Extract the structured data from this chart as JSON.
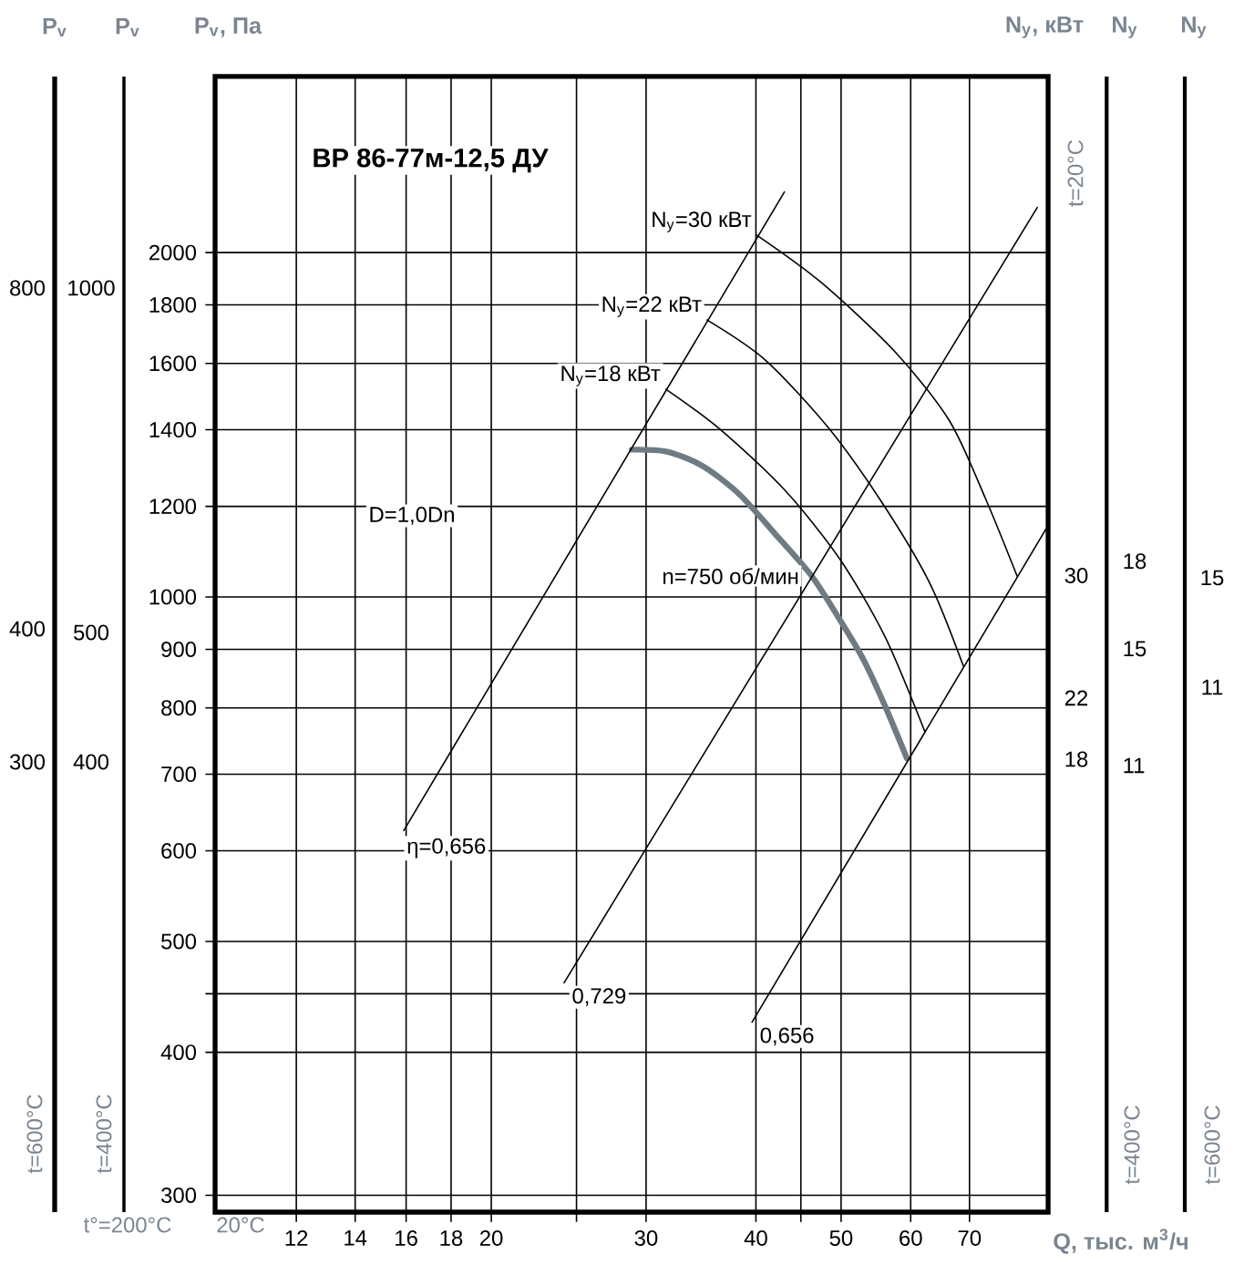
{
  "chart_data": [
    {
      "type": "other",
      "ylabel": "P$_{v}$",
      "annotations": [
        "800",
        "400",
        "300",
        "t=600°C"
      ]
    },
    {
      "type": "other",
      "ylabel": "P$_{v}$",
      "annotations": [
        "1000",
        "500",
        "400",
        "t=400°C"
      ]
    },
    {
      "type": "line",
      "title": "ВР 86-77м-12,5 ДУ",
      "xlabel": "Q, тыс. м$^{3}$/ч",
      "ylabel": "P$_{v}$, Па",
      "y2label": "N$_{y}$, кВт",
      "y3label": "N$_{y}$",
      "log": "xy",
      "grid": true,
      "xlim": [
        9.7,
        86
      ],
      "xticks": [
        12,
        14,
        16,
        18,
        20,
        {
          "value": 25,
          "label": null
        },
        30,
        40,
        {
          "value": 45,
          "label": null
        },
        50,
        60,
        70
      ],
      "ylim": [
        290,
        2850
      ],
      "yticks": [
        300,
        400,
        {
          "value": 450,
          "label": null
        },
        500,
        600,
        700,
        800,
        900,
        1000,
        1200,
        1400,
        1600,
        1800,
        2000
      ],
      "y2lim": [
        -11.6,
        62.6
      ],
      "y2ticks": [
        18,
        22,
        30
      ],
      "y3lim": [
        -4.3,
        34.6
      ],
      "y3ticks": [
        11,
        15,
        18
      ],
      "series": [
        {
          "name": "n=750 об/мин",
          "color": "#6e7b82",
          "x": [
            28.9,
            31.6,
            34.7,
            38.2,
            42.0,
            46.3,
            49.8,
            53.0,
            56.1,
            59.4
          ],
          "values": [
            1345,
            1340,
            1303,
            1232,
            1137,
            1043,
            956,
            882,
            803,
            723
          ]
        },
        {
          "name": "N$_{y}$=30 кВт",
          "color": "#000000",
          "x": [
            40.1,
            47.4,
            57.5,
            66.4,
            73.0,
            79.3
          ],
          "values": [
            2071,
            1885,
            1640,
            1426,
            1219,
            1043
          ]
        },
        {
          "name": "N$_{y}$=22 кВт",
          "color": "#000000",
          "x": [
            35.2,
            41.0,
            48.5,
            56.1,
            63.2,
            68.9
          ],
          "values": [
            1746,
            1611,
            1402,
            1198,
            1025,
            870
          ]
        },
        {
          "name": "N$_{y}$=18 кВт",
          "color": "#000000",
          "x": [
            31.6,
            36.4,
            43.1,
            49.8,
            56.1,
            62.3
          ],
          "values": [
            1519,
            1402,
            1241,
            1080,
            923,
            762
          ]
        },
        {
          "name": "η=0,656",
          "color": "#000000",
          "x": [
            15.9,
            43.1
          ],
          "values": [
            625,
            2259
          ]
        },
        {
          "name": "0,729",
          "color": "#000000",
          "x": [
            24.2,
            83.6
          ],
          "values": [
            460,
            2190
          ]
        },
        {
          "name": "0,656",
          "color": "#000000",
          "x": [
            39.6,
            85.5
          ],
          "values": [
            425,
            1146
          ]
        }
      ],
      "annotations": [
        "D=1,0Dn",
        "t°=200°C",
        "20°C",
        "t=20°C",
        "t=400°C"
      ]
    },
    {
      "type": "other",
      "ylabel": "N$_{y}$",
      "annotations": [
        "15",
        "11",
        "t=600°C"
      ]
    }
  ]
}
